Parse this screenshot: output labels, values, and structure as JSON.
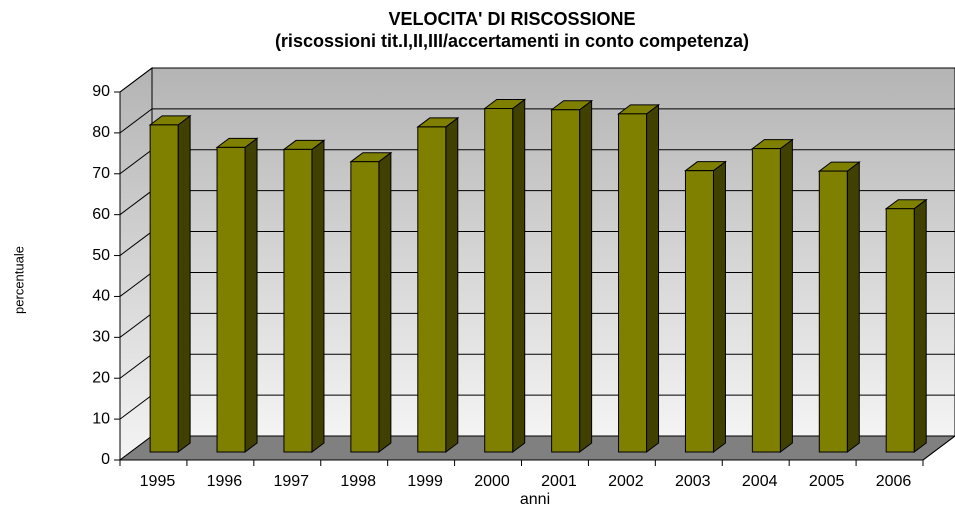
{
  "chart_data": {
    "type": "bar3d",
    "title": "VELOCITA' DI RISCOSSIONE",
    "subtitle": "(riscossioni tit.I,II,III/accertamenti in conto competenza)",
    "x_label": "anni",
    "y_label": "percentuale",
    "categories": [
      "1995",
      "1996",
      "1997",
      "1998",
      "1999",
      "2000",
      "2001",
      "2002",
      "2003",
      "2004",
      "2005",
      "2006"
    ],
    "values": [
      80,
      74.5,
      74,
      71,
      79.5,
      84,
      83.7,
      82.7,
      68.8,
      74.2,
      68.7,
      59.5
    ],
    "color": "#808000",
    "ylim": [
      0,
      90
    ],
    "yticks": [
      0,
      10,
      20,
      30,
      40,
      50,
      60,
      70,
      80,
      90
    ],
    "grid": true
  }
}
